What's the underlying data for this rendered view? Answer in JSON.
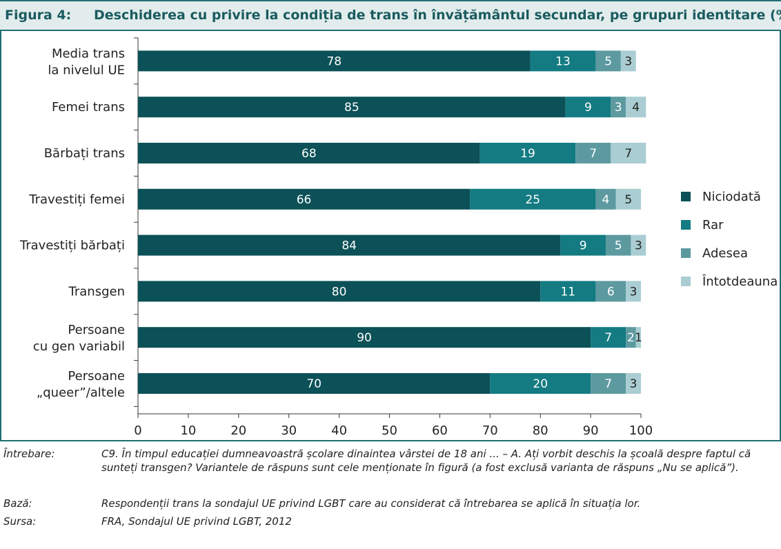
{
  "figure": {
    "number": "Figura 4:",
    "title": "Deschiderea cu privire la condiția de trans în învățământul secundar, pe grupuri identitare (%)"
  },
  "chart_data": {
    "type": "bar",
    "orientation": "horizontal",
    "stacked": true,
    "categories": [
      [
        "Media trans",
        "la nivelul UE"
      ],
      [
        "Femei trans"
      ],
      [
        "Bărbați trans"
      ],
      [
        "Travestiți femei"
      ],
      [
        "Travestiți bărbați"
      ],
      [
        "Transgen"
      ],
      [
        "Persoane",
        "cu gen variabil"
      ],
      [
        "Persoane",
        "„queer”/altele"
      ]
    ],
    "series": [
      {
        "name": "Niciodată",
        "color": "#0b5157",
        "values": [
          78,
          85,
          68,
          66,
          84,
          80,
          90,
          70
        ]
      },
      {
        "name": "Rar",
        "color": "#147b82",
        "values": [
          13,
          9,
          19,
          25,
          9,
          11,
          7,
          20
        ]
      },
      {
        "name": "Adesea",
        "color": "#5c9aa0",
        "values": [
          5,
          3,
          7,
          4,
          5,
          6,
          2,
          7
        ]
      },
      {
        "name": "Întotdeauna",
        "color": "#a9cdd2",
        "values": [
          3,
          4,
          7,
          5,
          3,
          3,
          1,
          3
        ]
      }
    ],
    "xlim": [
      0,
      100
    ],
    "xticks": [
      0,
      10,
      20,
      30,
      40,
      50,
      60,
      70,
      80,
      90,
      100
    ],
    "legend_position": "right",
    "grid": false
  },
  "notes": [
    {
      "key": "Întrebare:",
      "text": "C9. În timpul educației dumneavoastră școlare dinaintea vârstei de 18 ani ... – A. Ați vorbit deschis la școală despre faptul că sunteți transgen? Variantele de răspuns sunt cele menționate în figură (a fost exclusă varianta de răspuns „Nu se aplică”)."
    },
    {
      "key": "Bază:",
      "text": "Respondenții trans la sondajul UE privind LGBT care au considerat că întrebarea se aplică în situația lor."
    },
    {
      "key": "Sursa:",
      "text": "FRA, Sondajul UE privind LGBT, 2012"
    }
  ]
}
